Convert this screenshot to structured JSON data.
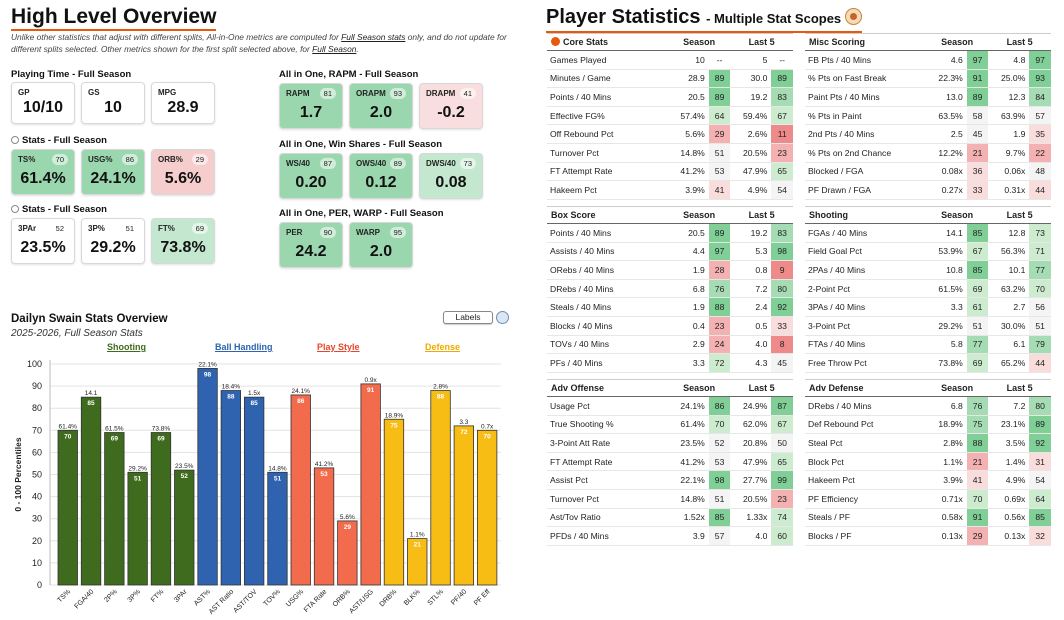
{
  "left": {
    "title": "High Level Overview",
    "note_parts": [
      "Unlike other statistics that adjust with different splits, All-in-One metrics are computed for ",
      "Full Season stats",
      " only, and do not update for different splits selected. Other metrics shown for the first split selected above, for ",
      "Full Season",
      "."
    ],
    "playing_time": {
      "title": "Playing Time - Full Season",
      "cards": [
        {
          "label": "GP",
          "value": "10/10"
        },
        {
          "label": "GS",
          "value": "10"
        },
        {
          "label": "MPG",
          "value": "28.9"
        }
      ]
    },
    "stats1": {
      "title": "Stats - Full Season",
      "cards": [
        {
          "label": "TS%",
          "rank": "70",
          "value": "61.4%",
          "tone": "g"
        },
        {
          "label": "USG%",
          "rank": "86",
          "value": "24.1%",
          "tone": "g"
        },
        {
          "label": "ORB%",
          "rank": "29",
          "value": "5.6%",
          "tone": "r"
        }
      ]
    },
    "stats2": {
      "title": "Stats - Full Season",
      "cards": [
        {
          "label": "3PAr",
          "rank": "52",
          "value": "23.5%",
          "tone": "w"
        },
        {
          "label": "3P%",
          "rank": "51",
          "value": "29.2%",
          "tone": "w"
        },
        {
          "label": "FT%",
          "rank": "69",
          "value": "73.8%",
          "tone": "lg"
        }
      ]
    },
    "rapm": {
      "title": "All in One, RAPM - Full Season",
      "cards": [
        {
          "label": "RAPM",
          "rank": "81",
          "value": "1.7",
          "tone": "g"
        },
        {
          "label": "ORAPM",
          "rank": "93",
          "value": "2.0",
          "tone": "g"
        },
        {
          "label": "DRAPM",
          "rank": "41",
          "value": "-0.2",
          "tone": "lr"
        }
      ]
    },
    "ws": {
      "title": "All in One, Win Shares - Full Season",
      "cards": [
        {
          "label": "WS/40",
          "rank": "87",
          "value": "0.20",
          "tone": "g"
        },
        {
          "label": "OWS/40",
          "rank": "89",
          "value": "0.12",
          "tone": "g"
        },
        {
          "label": "DWS/40",
          "rank": "73",
          "value": "0.08",
          "tone": "lg"
        }
      ]
    },
    "per": {
      "title": "All in One, PER, WARP - Full Season",
      "cards": [
        {
          "label": "PER",
          "rank": "90",
          "value": "24.2",
          "tone": "g"
        },
        {
          "label": "WARP",
          "rank": "95",
          "value": "2.0",
          "tone": "g"
        }
      ]
    }
  },
  "chart": {
    "title": "Dailyn Swain Stats Overview",
    "subtitle": "2025-2026, Full Season Stats",
    "labels_button": "Labels",
    "groups": [
      {
        "name": "Shooting",
        "color": "#3f6b1e"
      },
      {
        "name": "Ball Handling",
        "color": "#2f63b0"
      },
      {
        "name": "Play Style",
        "color": "#e8452c"
      },
      {
        "name": "Defense",
        "color": "#f2a900"
      }
    ]
  },
  "chart_data": {
    "type": "bar",
    "ylabel": "0 - 100 Percentiles",
    "ylim": [
      0,
      100
    ],
    "yticks": [
      0,
      10,
      20,
      30,
      40,
      50,
      60,
      70,
      80,
      90,
      100
    ],
    "grid": true,
    "categories": [
      "TS%",
      "FGA/40",
      "2P%",
      "3P%",
      "FT%",
      "3PAr",
      "AST%",
      "AST Ratio",
      "AST/TOV",
      "TOV%",
      "USG%",
      "FTA Rate",
      "ORB%",
      "AST/USG",
      "DRB%",
      "BLK%",
      "STL%",
      "PF/40",
      "PF Eff"
    ],
    "values": [
      70,
      85,
      69,
      51,
      69,
      52,
      98,
      88,
      85,
      51,
      86,
      53,
      29,
      91,
      75,
      21,
      88,
      72,
      70
    ],
    "stat_labels": [
      "61.4%",
      "14.1",
      "61.5%",
      "29.2%",
      "73.8%",
      "23.5%",
      "22.1%",
      "18.4%",
      "1.5x",
      "14.8%",
      "24.1%",
      "41.2%",
      "5.6%",
      "0.9x",
      "18.9%",
      "1.1%",
      "2.8%",
      "3.3",
      "0.7x"
    ],
    "group_index": [
      0,
      0,
      0,
      0,
      0,
      0,
      1,
      1,
      1,
      1,
      2,
      2,
      2,
      2,
      3,
      3,
      3,
      3,
      3
    ],
    "colors": [
      "#3f6b1e",
      "#2f63b0",
      "#f26b4c",
      "#f7bd14"
    ]
  },
  "right": {
    "title": "Player Statistics",
    "subtitle": "- Multiple Stat Scopes",
    "tables": [
      {
        "title": "Core Stats",
        "h1": "Season",
        "h2": "Last 5",
        "rows": [
          [
            "Games Played",
            "10",
            "--",
            "5",
            "--"
          ],
          [
            "Minutes / Game",
            "28.9",
            "89",
            "30.0",
            "89"
          ],
          [
            "Points / 40 Mins",
            "20.5",
            "89",
            "19.2",
            "83"
          ],
          [
            "Effective FG%",
            "57.4%",
            "64",
            "59.4%",
            "67"
          ],
          [
            "Off Rebound Pct",
            "5.6%",
            "29",
            "2.6%",
            "11"
          ],
          [
            "Turnover Pct",
            "14.8%",
            "51",
            "20.5%",
            "23"
          ],
          [
            "FT Attempt Rate",
            "41.2%",
            "53",
            "47.9%",
            "65"
          ],
          [
            "Hakeem Pct",
            "3.9%",
            "41",
            "4.9%",
            "54"
          ]
        ]
      },
      {
        "title": "Misc Scoring",
        "h1": "Season",
        "h2": "Last 5",
        "rows": [
          [
            "FB Pts / 40 Mins",
            "4.6",
            "97",
            "4.8",
            "97"
          ],
          [
            "% Pts on Fast Break",
            "22.3%",
            "91",
            "25.0%",
            "93"
          ],
          [
            "Paint Pts / 40 Mins",
            "13.0",
            "89",
            "12.3",
            "84"
          ],
          [
            "% Pts in Paint",
            "63.5%",
            "58",
            "63.9%",
            "57"
          ],
          [
            "2nd Pts / 40 Mins",
            "2.5",
            "45",
            "1.9",
            "35"
          ],
          [
            "% Pts on 2nd Chance",
            "12.2%",
            "21",
            "9.7%",
            "22"
          ],
          [
            "Blocked / FGA",
            "0.08x",
            "36",
            "0.06x",
            "48"
          ],
          [
            "PF Drawn / FGA",
            "0.27x",
            "33",
            "0.31x",
            "44"
          ]
        ]
      },
      {
        "title": "Box Score",
        "h1": "Season",
        "h2": "Last 5",
        "rows": [
          [
            "Points / 40 Mins",
            "20.5",
            "89",
            "19.2",
            "83"
          ],
          [
            "Assists / 40 Mins",
            "4.4",
            "97",
            "5.3",
            "98"
          ],
          [
            "ORebs / 40 Mins",
            "1.9",
            "28",
            "0.8",
            "9"
          ],
          [
            "DRebs / 40 Mins",
            "6.8",
            "76",
            "7.2",
            "80"
          ],
          [
            "Steals / 40 Mins",
            "1.9",
            "88",
            "2.4",
            "92"
          ],
          [
            "Blocks / 40 Mins",
            "0.4",
            "23",
            "0.5",
            "33"
          ],
          [
            "TOVs / 40 Mins",
            "2.9",
            "24",
            "4.0",
            "8"
          ],
          [
            "PFs / 40 Mins",
            "3.3",
            "72",
            "4.3",
            "45"
          ]
        ]
      },
      {
        "title": "Shooting",
        "h1": "Season",
        "h2": "Last 5",
        "rows": [
          [
            "FGAs / 40 Mins",
            "14.1",
            "85",
            "12.8",
            "73"
          ],
          [
            "Field Goal Pct",
            "53.9%",
            "67",
            "56.3%",
            "71"
          ],
          [
            "2PAs / 40 Mins",
            "10.8",
            "85",
            "10.1",
            "77"
          ],
          [
            "2-Point Pct",
            "61.5%",
            "69",
            "63.2%",
            "70"
          ],
          [
            "3PAs / 40 Mins",
            "3.3",
            "61",
            "2.7",
            "56"
          ],
          [
            "3-Point Pct",
            "29.2%",
            "51",
            "30.0%",
            "51"
          ],
          [
            "FTAs / 40 Mins",
            "5.8",
            "77",
            "6.1",
            "79"
          ],
          [
            "Free Throw Pct",
            "73.8%",
            "69",
            "65.2%",
            "44"
          ]
        ]
      },
      {
        "title": "Adv Offense",
        "h1": "Season",
        "h2": "Last 5",
        "rows": [
          [
            "Usage Pct",
            "24.1%",
            "86",
            "24.9%",
            "87"
          ],
          [
            "True Shooting %",
            "61.4%",
            "70",
            "62.0%",
            "67"
          ],
          [
            "3-Point Att Rate",
            "23.5%",
            "52",
            "20.8%",
            "50"
          ],
          [
            "FT Attempt Rate",
            "41.2%",
            "53",
            "47.9%",
            "65"
          ],
          [
            "Assist Pct",
            "22.1%",
            "98",
            "27.7%",
            "99"
          ],
          [
            "Turnover Pct",
            "14.8%",
            "51",
            "20.5%",
            "23"
          ],
          [
            "Ast/Tov Ratio",
            "1.52x",
            "85",
            "1.33x",
            "74"
          ],
          [
            "PFDs / 40 Mins",
            "3.9",
            "57",
            "4.0",
            "60"
          ]
        ]
      },
      {
        "title": "Adv Defense",
        "h1": "Season",
        "h2": "Last 5",
        "rows": [
          [
            "DRebs / 40 Mins",
            "6.8",
            "76",
            "7.2",
            "80"
          ],
          [
            "Def Rebound Pct",
            "18.9%",
            "75",
            "23.1%",
            "89"
          ],
          [
            "Steal Pct",
            "2.8%",
            "88",
            "3.5%",
            "92"
          ],
          [
            "Block Pct",
            "1.1%",
            "21",
            "1.4%",
            "31"
          ],
          [
            "Hakeem Pct",
            "3.9%",
            "41",
            "4.9%",
            "54"
          ],
          [
            "PF Efficiency",
            "0.71x",
            "70",
            "0.69x",
            "64"
          ],
          [
            "Steals / PF",
            "0.58x",
            "91",
            "0.56x",
            "85"
          ],
          [
            "Blocks / PF",
            "0.13x",
            "29",
            "0.13x",
            "32"
          ]
        ]
      }
    ]
  }
}
